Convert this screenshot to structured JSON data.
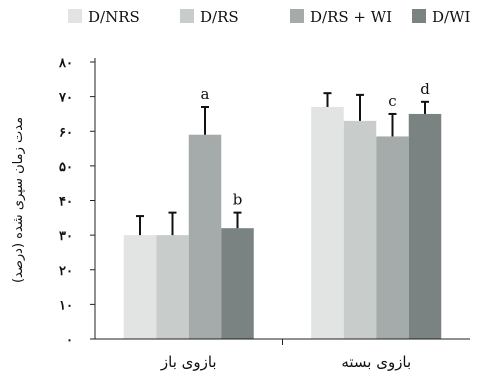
{
  "chart_data": {
    "type": "bar",
    "ylabel": "مدت زمان سپری شده (درصد)",
    "ylim": [
      0,
      80
    ],
    "yticks": [
      {
        "value": 0,
        "label": "۰"
      },
      {
        "value": 10,
        "label": "۱۰"
      },
      {
        "value": 20,
        "label": "۲۰"
      },
      {
        "value": 30,
        "label": "۳۰"
      },
      {
        "value": 40,
        "label": "۴۰"
      },
      {
        "value": 50,
        "label": "۵۰"
      },
      {
        "value": 60,
        "label": "۶۰"
      },
      {
        "value": 70,
        "label": "۷۰"
      },
      {
        "value": 80,
        "label": "۸۰"
      }
    ],
    "grid": false,
    "legend_position": "top",
    "categories": [
      "بازوی باز",
      "بازوی بسته"
    ],
    "series": [
      {
        "name": "D/NRS",
        "color": "#e1e4e2",
        "values": [
          30,
          67
        ],
        "errors": [
          5.5,
          4
        ]
      },
      {
        "name": "D/RS",
        "color": "#c8cdcb",
        "values": [
          30,
          63
        ],
        "errors": [
          6.5,
          7.5
        ]
      },
      {
        "name": "D/RS + WI",
        "color": "#a4abaa",
        "values": [
          59,
          58.5
        ],
        "errors": [
          8,
          6.5
        ]
      },
      {
        "name": "D/WI",
        "color": "#7a8282",
        "values": [
          32,
          65
        ],
        "errors": [
          4.5,
          3.5
        ]
      }
    ],
    "annotations": [
      {
        "category": 0,
        "series": 2,
        "text": "a"
      },
      {
        "category": 0,
        "series": 3,
        "text": "b"
      },
      {
        "category": 1,
        "series": 2,
        "text": "c"
      },
      {
        "category": 1,
        "series": 3,
        "text": "d"
      }
    ]
  }
}
